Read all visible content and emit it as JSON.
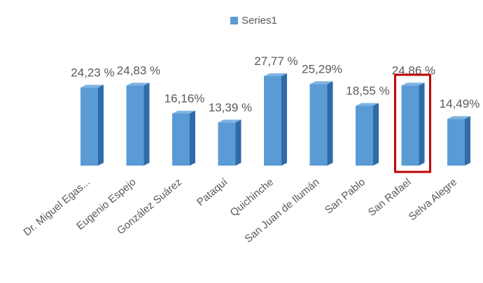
{
  "chart_data": {
    "type": "bar",
    "categories": [
      "Dr. Miguel Egas...",
      "Eugenio Espejo",
      "González Suárez",
      "Pataquí",
      "Quichinche",
      "San Juan de Ilumán",
      "San Pablo",
      "San Rafael",
      "Selva Alegre"
    ],
    "series": [
      {
        "name": "Series1",
        "values": [
          24.23,
          24.83,
          16.16,
          13.39,
          27.77,
          25.29,
          18.55,
          24.86,
          14.49
        ]
      }
    ],
    "data_labels": [
      "24,23 %",
      "24,83 %",
      "16,16%",
      "13,39 %",
      "27,77 %",
      "25,29%",
      "18,55 %",
      "24,86 %",
      "14,49%"
    ],
    "legend": {
      "position": "top",
      "label": "Series1"
    },
    "grid": false,
    "ylim": [
      0,
      35
    ],
    "highlighted_category": "San Rafael",
    "colors": {
      "bar_front": "#5b9bd5",
      "bar_side": "#2f6ba7",
      "bar_top": "#7fb2e0",
      "label_text": "#595959",
      "highlight_border": "#c00000"
    }
  }
}
